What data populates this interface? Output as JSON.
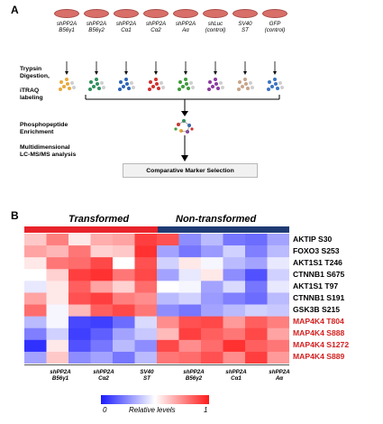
{
  "panel_a": {
    "label": "A",
    "conditions": [
      {
        "line1": "shPP2A",
        "line2": "B56γ1"
      },
      {
        "line1": "shPP2A",
        "line2": "B56γ2"
      },
      {
        "line1": "shPP2A",
        "line2": "Cα1"
      },
      {
        "line1": "shPP2A",
        "line2": "Cα2"
      },
      {
        "line1": "shPP2A",
        "line2": "Aα"
      },
      {
        "line1": "shLuc",
        "line2": "(control)"
      },
      {
        "line1": "SV40",
        "line2": "ST"
      },
      {
        "line1": "GFP",
        "line2": "(control)"
      }
    ],
    "steps": {
      "digestion_1": "Trypsin",
      "digestion_2": "Digestion,",
      "labeling": "iTRAQ",
      "labeling_2": "labeling",
      "enrichment_1": "Phosphopeptide",
      "enrichment_2": "Enrichment",
      "analysis_1": "Multidimensional",
      "analysis_2": "LC-MS/MS analysis",
      "final": "Comparative Marker Selection"
    },
    "cluster_colors": [
      "#e8a93c",
      "#2f8f5b",
      "#2b64b8",
      "#d0312d",
      "#3e9b3c",
      "#8b3b9f",
      "#c7a58a",
      "#3a74c2"
    ]
  },
  "panel_b": {
    "label": "B",
    "group_left": "Transformed",
    "group_right": "Non-transformed",
    "group_left_color": "#e8232a",
    "group_right_color": "#1f3b73",
    "row_labels": [
      "AKTIP S30",
      "FOXO3 S253",
      "AKT1S1 T246",
      "CTNNB1 S675",
      "AKT1S1 T97",
      "CTNNB1 S191",
      "GSK3B S215",
      "MAP4K4 T804",
      "MAP4K4 S888",
      "MAP4K4 S1272",
      "MAP4K4 S889"
    ],
    "row_label_colors": [
      "#000000",
      "#000000",
      "#000000",
      "#000000",
      "#000000",
      "#000000",
      "#000000",
      "#d21f1f",
      "#d21f1f",
      "#d21f1f",
      "#d21f1f"
    ],
    "column_labels": [
      {
        "line1": "shPP2A",
        "line2": "B56γ1"
      },
      {
        "line1": "shPP2A",
        "line2": "Cα2"
      },
      {
        "line1": "SV40",
        "line2": "ST"
      },
      {
        "line1": "shPP2A",
        "line2": "B56γ2"
      },
      {
        "line1": "shPP2A",
        "line2": "Cα1"
      },
      {
        "line1": "shPP2A",
        "line2": "Aα"
      }
    ],
    "heatmap_values": [
      [
        0.62,
        0.78,
        0.55,
        0.68,
        0.7,
        0.92,
        0.88,
        0.25,
        0.35,
        0.2,
        0.18,
        0.3
      ],
      [
        0.7,
        0.66,
        0.8,
        0.6,
        0.62,
        0.95,
        0.3,
        0.2,
        0.28,
        0.4,
        0.22,
        0.35
      ],
      [
        0.55,
        0.8,
        0.82,
        0.9,
        0.5,
        0.88,
        0.4,
        0.55,
        0.48,
        0.35,
        0.3,
        0.45
      ],
      [
        0.5,
        0.6,
        0.92,
        0.95,
        0.8,
        0.9,
        0.3,
        0.45,
        0.55,
        0.25,
        0.12,
        0.4
      ],
      [
        0.45,
        0.55,
        0.85,
        0.7,
        0.6,
        0.82,
        0.5,
        0.48,
        0.3,
        0.42,
        0.2,
        0.45
      ],
      [
        0.7,
        0.55,
        0.88,
        0.92,
        0.78,
        0.75,
        0.35,
        0.4,
        0.28,
        0.22,
        0.18,
        0.35
      ],
      [
        0.82,
        0.48,
        0.65,
        0.85,
        0.9,
        0.8,
        0.25,
        0.2,
        0.3,
        0.35,
        0.4,
        0.38
      ],
      [
        0.35,
        0.48,
        0.1,
        0.08,
        0.18,
        0.42,
        0.75,
        0.88,
        0.9,
        0.72,
        0.85,
        0.78
      ],
      [
        0.22,
        0.4,
        0.08,
        0.15,
        0.3,
        0.38,
        0.65,
        0.92,
        0.85,
        0.8,
        0.9,
        0.7
      ],
      [
        0.05,
        0.55,
        0.12,
        0.2,
        0.35,
        0.25,
        0.9,
        0.75,
        0.82,
        0.95,
        0.85,
        0.8
      ],
      [
        0.3,
        0.62,
        0.25,
        0.3,
        0.2,
        0.35,
        0.8,
        0.82,
        0.88,
        0.75,
        0.92,
        0.72
      ]
    ],
    "legend": {
      "min_label": "0",
      "title": "Relative levels",
      "max_label": "1",
      "min_color": "#1a1aff",
      "mid_color": "#ffffff",
      "max_color": "#ff1a1a"
    }
  }
}
